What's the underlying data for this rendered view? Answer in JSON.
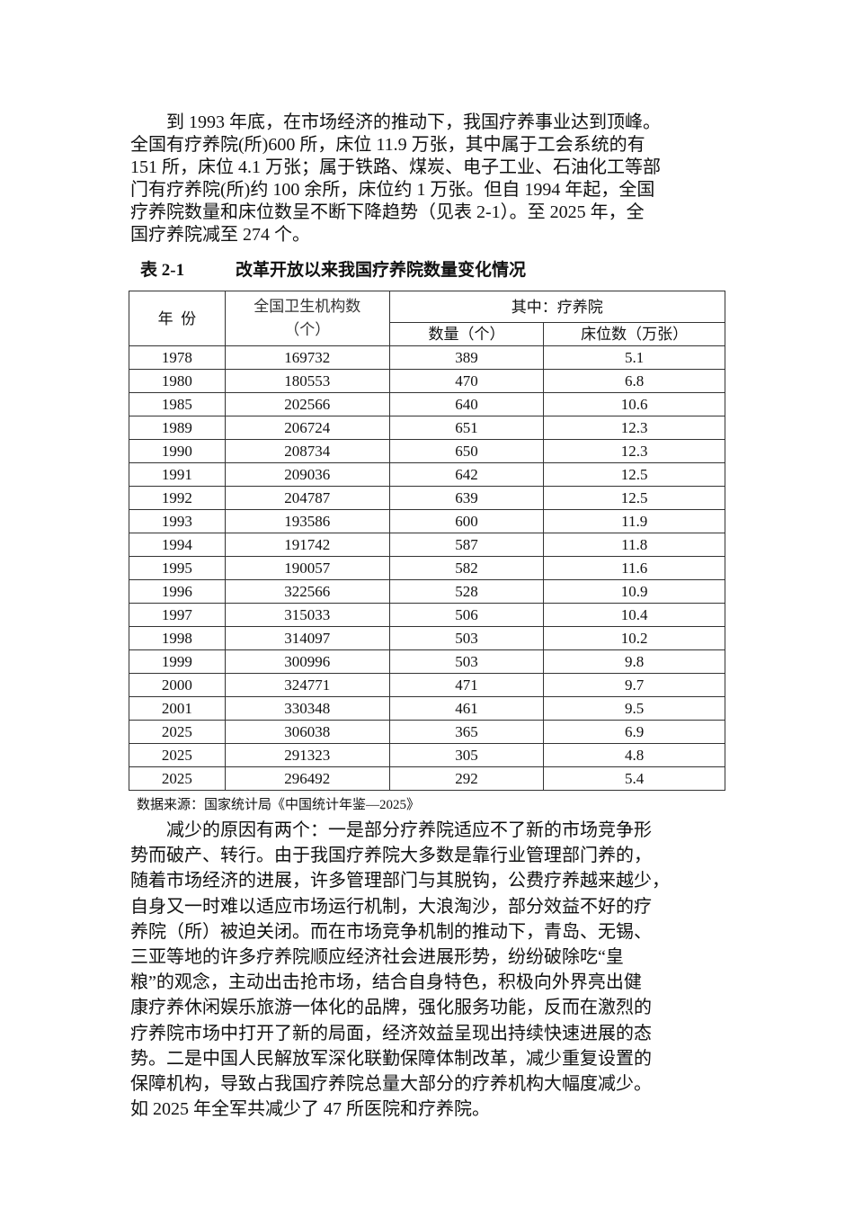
{
  "paragraph1": [
    "到 1993 年底，在市场经济的推动下，我国疗养事业达到顶峰。",
    "全国有疗养院(所)600 所，床位 11.9 万张，其中属于工会系统的有",
    "151 所，床位 4.1 万张；属于铁路、煤炭、电子工业、石油化工等部",
    "门有疗养院(所)约 100 余所，床位约 1 万张。但自 1994 年起，全国",
    "疗养院数量和床位数呈不断下降趋势（见表 2-1）。至 2025 年，全",
    "国疗养院减至 274 个。"
  ],
  "table": {
    "caption_number": "表 2-1",
    "caption_title": "改革开放以来我国疗养院数量变化情况",
    "header": {
      "year": "年  份",
      "institutions": "全国卫生机构数",
      "institutions_unit": "（个）",
      "group": "其中：疗养院",
      "count": "数量（个）",
      "beds": "床位数（万张）"
    },
    "rows": [
      [
        "1978",
        "169732",
        "389",
        "5.1"
      ],
      [
        "1980",
        "180553",
        "470",
        "6.8"
      ],
      [
        "1985",
        "202566",
        "640",
        "10.6"
      ],
      [
        "1989",
        "206724",
        "651",
        "12.3"
      ],
      [
        "1990",
        "208734",
        "650",
        "12.3"
      ],
      [
        "1991",
        "209036",
        "642",
        "12.5"
      ],
      [
        "1992",
        "204787",
        "639",
        "12.5"
      ],
      [
        "1993",
        "193586",
        "600",
        "11.9"
      ],
      [
        "1994",
        "191742",
        "587",
        "11.8"
      ],
      [
        "1995",
        "190057",
        "582",
        "11.6"
      ],
      [
        "1996",
        "322566",
        "528",
        "10.9"
      ],
      [
        "1997",
        "315033",
        "506",
        "10.4"
      ],
      [
        "1998",
        "314097",
        "503",
        "10.2"
      ],
      [
        "1999",
        "300996",
        "503",
        "9.8"
      ],
      [
        "2000",
        "324771",
        "471",
        "9.7"
      ],
      [
        "2001",
        "330348",
        "461",
        "9.5"
      ],
      [
        "2025",
        "306038",
        "365",
        "6.9"
      ],
      [
        "2025",
        "291323",
        "305",
        "4.8"
      ],
      [
        "2025",
        "296492",
        "292",
        "5.4"
      ]
    ],
    "source": "数据来源：国家统计局《中国统计年鉴—2025》"
  },
  "paragraph2": [
    "减少的原因有两个：一是部分疗养院适应不了新的市场竞争形",
    "势而破产、转行。由于我国疗养院大多数是靠行业管理部门养的，",
    "随着市场经济的进展，许多管理部门与其脱钩，公费疗养越来越少，",
    "自身又一时难以适应市场运行机制，大浪淘沙，部分效益不好的疗",
    "养院（所）被迫关闭。而在市场竞争机制的推动下，青岛、无锡、",
    "三亚等地的许多疗养院顺应经济社会进展形势，纷纷破除吃“皇",
    "粮”的观念，主动出击抢市场，结合自身特色，积极向外界亮出健",
    "康疗养休闲娱乐旅游一体化的品牌，强化服务功能，反而在激烈的",
    "疗养院市场中打开了新的局面，经济效益呈现出持续快速进展的态",
    "势。二是中国人民解放军深化联勤保障体制改革，减少重复设置的",
    "保障机构，导致占我国疗养院总量大部分的疗养机构大幅度减少。",
    "如 2025 年全军共减少了 47 所医院和疗养院。"
  ]
}
